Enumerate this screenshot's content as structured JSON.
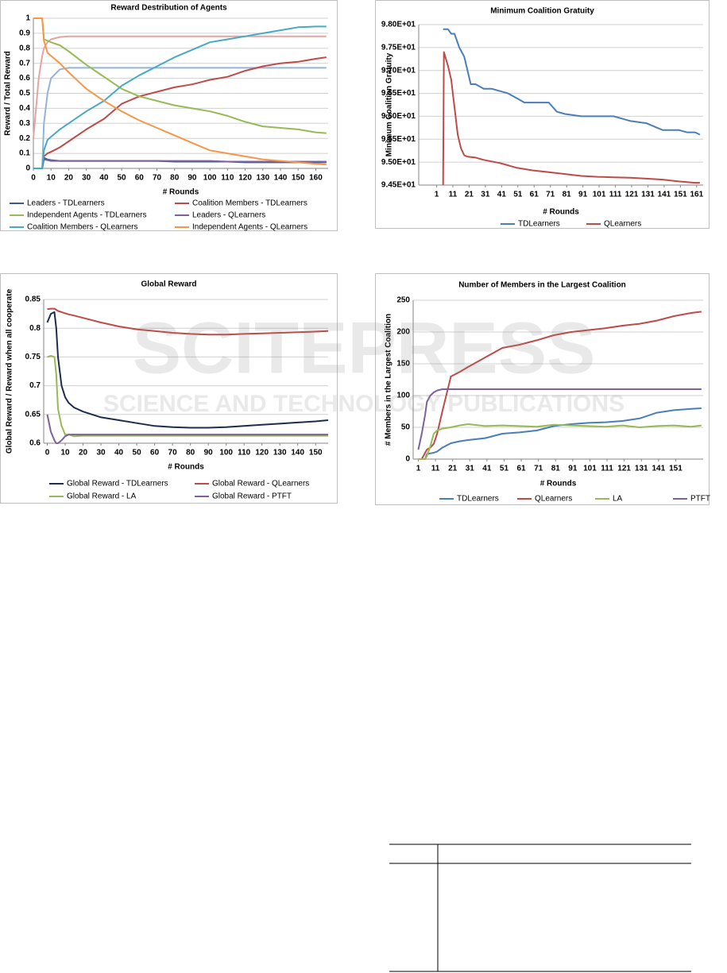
{
  "watermark": {
    "title": "SCITEPRESS",
    "subtitle": "SCIENCE AND TECHNOLOGY PUBLICATIONS"
  },
  "chart_data": [
    {
      "type": "line",
      "title": "Reward Destribution of Agents",
      "xlabel": "# Rounds",
      "ylabel": "Reward / Total Reward",
      "x": [
        0,
        3,
        5,
        6,
        8,
        10,
        15,
        20,
        30,
        40,
        50,
        60,
        70,
        80,
        90,
        100,
        110,
        120,
        130,
        140,
        150,
        160,
        166
      ],
      "xlim": [
        0,
        167
      ],
      "xticks": [
        0,
        10,
        20,
        30,
        40,
        50,
        60,
        70,
        80,
        90,
        100,
        110,
        120,
        130,
        140,
        150,
        160
      ],
      "ylim": [
        0,
        1
      ],
      "yticks": [
        0,
        0.1,
        0.2,
        0.3,
        0.4,
        0.5,
        0.6,
        0.7,
        0.8,
        0.9,
        1
      ],
      "grid": true,
      "series": [
        {
          "color": "#e8a3a1",
          "values": [
            0.2,
            0.6,
            0.75,
            0.8,
            0.84,
            0.86,
            0.875,
            0.88,
            0.88,
            0.88,
            0.88,
            0.88,
            0.88,
            0.88,
            0.88,
            0.88,
            0.88,
            0.88,
            0.88,
            0.88,
            0.88,
            0.88,
            0.88
          ]
        },
        {
          "color": "#95b3d7",
          "values": [
            0,
            0,
            0,
            0.3,
            0.5,
            0.6,
            0.66,
            0.67,
            0.67,
            0.67,
            0.67,
            0.67,
            0.67,
            0.67,
            0.67,
            0.67,
            0.67,
            0.67,
            0.67,
            0.67,
            0.67,
            0.67,
            0.67
          ]
        },
        {
          "name": "Leaders - TDLearners",
          "color": "#3b5b8c",
          "values": [
            0,
            0,
            0,
            0.07,
            0.06,
            0.055,
            0.05,
            0.05,
            0.05,
            0.05,
            0.05,
            0.05,
            0.05,
            0.045,
            0.045,
            0.045,
            0.045,
            0.04,
            0.04,
            0.04,
            0.04,
            0.04,
            0.04
          ]
        },
        {
          "name": "Coalition Members - TDLearners",
          "color": "#be4b48",
          "values": [
            0,
            0,
            0,
            0.08,
            0.1,
            0.11,
            0.14,
            0.18,
            0.26,
            0.33,
            0.43,
            0.48,
            0.51,
            0.54,
            0.56,
            0.59,
            0.61,
            0.65,
            0.68,
            0.7,
            0.71,
            0.73,
            0.74
          ]
        },
        {
          "name": "Independent Agents - TDLearners",
          "color": "#98b954",
          "values": [
            1,
            1,
            1,
            0.86,
            0.85,
            0.84,
            0.82,
            0.78,
            0.69,
            0.61,
            0.53,
            0.48,
            0.45,
            0.42,
            0.4,
            0.38,
            0.35,
            0.31,
            0.28,
            0.27,
            0.26,
            0.24,
            0.235
          ]
        },
        {
          "name": "Leaders - QLearners",
          "color": "#7d60a0",
          "values": [
            0,
            0,
            0,
            0.06,
            0.055,
            0.05,
            0.05,
            0.05,
            0.05,
            0.05,
            0.05,
            0.05,
            0.05,
            0.05,
            0.05,
            0.05,
            0.045,
            0.045,
            0.045,
            0.045,
            0.045,
            0.045,
            0.045
          ]
        },
        {
          "name": "Coalition Members - QLearners",
          "color": "#46aac5",
          "values": [
            0,
            0,
            0,
            0.12,
            0.19,
            0.21,
            0.26,
            0.3,
            0.38,
            0.45,
            0.55,
            0.62,
            0.68,
            0.74,
            0.79,
            0.84,
            0.86,
            0.88,
            0.9,
            0.92,
            0.94,
            0.945,
            0.945
          ]
        },
        {
          "name": "Independent Agents - QLearners",
          "color": "#f79646",
          "values": [
            1,
            1,
            1,
            0.85,
            0.77,
            0.75,
            0.7,
            0.64,
            0.53,
            0.45,
            0.38,
            0.32,
            0.27,
            0.22,
            0.17,
            0.12,
            0.1,
            0.08,
            0.06,
            0.05,
            0.04,
            0.03,
            0.025
          ]
        }
      ]
    },
    {
      "type": "line",
      "title": "Minimum Coalition Gratuity",
      "xlabel": "# Rounds",
      "ylabel": "Minimum Coalition Gratuity",
      "xlim": [
        -10,
        165
      ],
      "xticks": [
        1,
        11,
        21,
        31,
        41,
        51,
        61,
        71,
        81,
        91,
        101,
        111,
        121,
        131,
        141,
        151,
        161
      ],
      "ylim": [
        94.5,
        98
      ],
      "yticks": [
        {
          "value": 94.5,
          "label": "9.45E+01"
        },
        {
          "value": 95,
          "label": "9.50E+01"
        },
        {
          "value": 95.5,
          "label": "9.55E+01"
        },
        {
          "value": 96,
          "label": "9.60E+01"
        },
        {
          "value": 96.5,
          "label": "9.65E+01"
        },
        {
          "value": 97,
          "label": "9.70E+01"
        },
        {
          "value": 97.5,
          "label": "9.75E+01"
        },
        {
          "value": 98,
          "label": "9.80E+01"
        }
      ],
      "grid": true,
      "series": [
        {
          "name": "TDLearners",
          "color": "#4a7ebb",
          "x": [
            5,
            8,
            10,
            12,
            15,
            18,
            22,
            25,
            30,
            35,
            40,
            45,
            50,
            55,
            60,
            65,
            70,
            75,
            80,
            90,
            100,
            110,
            120,
            130,
            140,
            150,
            155,
            160,
            163
          ],
          "values": [
            97.9,
            97.9,
            97.8,
            97.8,
            97.5,
            97.3,
            96.7,
            96.7,
            96.6,
            96.6,
            96.55,
            96.5,
            96.4,
            96.3,
            96.3,
            96.3,
            96.3,
            96.1,
            96.05,
            96,
            96,
            96,
            95.9,
            95.85,
            95.7,
            95.7,
            95.65,
            95.65,
            95.6
          ]
        },
        {
          "name": "QLearners",
          "color": "#be4b48",
          "x": [
            5,
            5.5,
            8,
            10,
            12,
            14,
            16,
            18,
            20,
            25,
            30,
            40,
            50,
            60,
            70,
            80,
            90,
            100,
            110,
            120,
            130,
            140,
            150,
            160,
            163
          ],
          "values": [
            94.5,
            97.4,
            97.1,
            96.8,
            96.2,
            95.6,
            95.3,
            95.15,
            95.12,
            95.1,
            95.05,
            94.98,
            94.88,
            94.82,
            94.78,
            94.74,
            94.7,
            94.68,
            94.67,
            94.66,
            94.64,
            94.62,
            94.58,
            94.55,
            94.55
          ]
        }
      ]
    },
    {
      "type": "line",
      "title": "Global Reward",
      "xlabel": "# Rounds",
      "ylabel": "Global Reward / Reward when all cooperate",
      "x": [
        0,
        2,
        4,
        5,
        6,
        8,
        10,
        12,
        15,
        20,
        30,
        40,
        50,
        60,
        70,
        80,
        90,
        100,
        110,
        120,
        130,
        140,
        150,
        157
      ],
      "xlim": [
        -2,
        157
      ],
      "xticks": [
        0,
        10,
        20,
        30,
        40,
        50,
        60,
        70,
        80,
        90,
        100,
        110,
        120,
        130,
        140,
        150
      ],
      "ylim": [
        0.6,
        0.85
      ],
      "yticks": [
        0.6,
        0.65,
        0.7,
        0.75,
        0.8,
        0.85
      ],
      "grid": true,
      "series": [
        {
          "name": "Global Reward - TDLearners",
          "color": "#1f2d4d",
          "values": [
            0.81,
            0.825,
            0.828,
            0.8,
            0.75,
            0.7,
            0.68,
            0.67,
            0.662,
            0.655,
            0.645,
            0.64,
            0.635,
            0.63,
            0.628,
            0.627,
            0.627,
            0.628,
            0.63,
            0.632,
            0.634,
            0.636,
            0.638,
            0.64
          ]
        },
        {
          "name": "Global Reward - QLearners",
          "color": "#be4b48",
          "values": [
            0.833,
            0.834,
            0.834,
            0.832,
            0.83,
            0.828,
            0.826,
            0.824,
            0.822,
            0.818,
            0.81,
            0.803,
            0.798,
            0.795,
            0.792,
            0.79,
            0.789,
            0.789,
            0.79,
            0.791,
            0.792,
            0.793,
            0.794,
            0.795
          ]
        },
        {
          "name": "Global Reward - LA",
          "color": "#98b954",
          "values": [
            0.75,
            0.752,
            0.75,
            0.72,
            0.66,
            0.63,
            0.615,
            0.615,
            0.612,
            0.613,
            0.613,
            0.613,
            0.613,
            0.613,
            0.613,
            0.613,
            0.613,
            0.613,
            0.613,
            0.613,
            0.613,
            0.613,
            0.613,
            0.613
          ]
        },
        {
          "name": "Global Reward - PTFT",
          "color": "#7d60a0",
          "values": [
            0.65,
            0.62,
            0.605,
            0.6,
            0.6,
            0.605,
            0.612,
            0.615,
            0.615,
            0.615,
            0.615,
            0.615,
            0.615,
            0.615,
            0.615,
            0.615,
            0.615,
            0.615,
            0.615,
            0.615,
            0.615,
            0.615,
            0.615,
            0.615
          ]
        }
      ]
    },
    {
      "type": "line",
      "title": "Number of Members in the Largest Coalition",
      "xlabel": "# Rounds",
      "ylabel": "# Members in the Largest Coalition",
      "x": [
        1,
        3,
        5,
        6,
        8,
        10,
        12,
        15,
        20,
        25,
        30,
        40,
        50,
        60,
        70,
        80,
        90,
        100,
        110,
        120,
        130,
        140,
        150,
        160,
        166
      ],
      "xlim": [
        -2,
        167
      ],
      "xticks": [
        1,
        11,
        21,
        31,
        41,
        51,
        61,
        71,
        81,
        91,
        101,
        111,
        121,
        131,
        141,
        151
      ],
      "ylim": [
        0,
        250
      ],
      "yticks": [
        0,
        50,
        100,
        150,
        200,
        250
      ],
      "grid": true,
      "series": [
        {
          "name": "TDLearners",
          "color": "#4a7ebb",
          "values": [
            0,
            0,
            0,
            8,
            9,
            10,
            12,
            18,
            25,
            28,
            30,
            33,
            40,
            42,
            45,
            52,
            55,
            57,
            58,
            60,
            64,
            73,
            77,
            79,
            80
          ]
        },
        {
          "name": "QLearners",
          "color": "#be4b48",
          "values": [
            0,
            0,
            10,
            15,
            18,
            24,
            40,
            75,
            130,
            137,
            145,
            160,
            175,
            180,
            187,
            195,
            200,
            203,
            206,
            210,
            213,
            218,
            225,
            230,
            232
          ]
        },
        {
          "name": "LA",
          "color": "#98b954",
          "values": [
            0,
            0,
            0,
            5,
            20,
            40,
            45,
            48,
            50,
            53,
            55,
            52,
            53,
            52,
            51,
            54,
            53,
            52,
            51,
            53,
            50,
            52,
            53,
            51,
            53
          ]
        },
        {
          "name": "PTFT",
          "color": "#7d60a0",
          "values": [
            15,
            40,
            70,
            90,
            100,
            105,
            108,
            110,
            110,
            110,
            110,
            110,
            110,
            110,
            110,
            110,
            110,
            110,
            110,
            110,
            110,
            110,
            110,
            110,
            110
          ]
        }
      ]
    }
  ]
}
